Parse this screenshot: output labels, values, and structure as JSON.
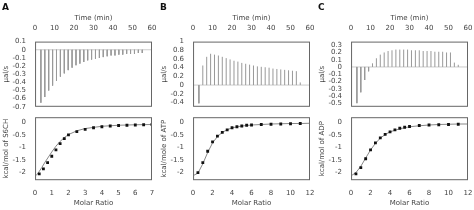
{
  "chart_data": [
    {
      "type": "spike",
      "title": "A",
      "xlabel": "Time (min)",
      "ylabel": "μal/s",
      "xlim": [
        0,
        60
      ],
      "xticks": [
        0,
        10,
        20,
        30,
        40,
        50,
        60
      ],
      "ylim": [
        -0.7,
        0.1
      ],
      "yticks": [
        0.1,
        0,
        -0.1,
        -0.2,
        -0.3,
        -0.4,
        -0.5,
        -0.6,
        -0.7
      ],
      "x": [
        3,
        5,
        7,
        9,
        11,
        13,
        15,
        17,
        19,
        21,
        23,
        25,
        27,
        29,
        31,
        33,
        35,
        37,
        39,
        41,
        43,
        45,
        47,
        49,
        51,
        53,
        55
      ],
      "values": [
        -0.65,
        -0.58,
        -0.5,
        -0.44,
        -0.38,
        -0.33,
        -0.29,
        -0.25,
        -0.22,
        -0.19,
        -0.17,
        -0.15,
        -0.13,
        -0.12,
        -0.11,
        -0.1,
        -0.09,
        -0.08,
        -0.07,
        -0.07,
        -0.06,
        -0.06,
        -0.05,
        -0.05,
        -0.05,
        -0.04,
        -0.04
      ],
      "baseline": 0,
      "color": "#999999",
      "grid": false
    },
    {
      "type": "scatter",
      "xlabel": "Molar Ratio",
      "ylabel": "kcal/mol of S6CH",
      "xlim": [
        0,
        7
      ],
      "xticks": [
        0,
        1,
        2,
        3,
        4,
        5,
        6,
        7
      ],
      "ylim": [
        -2.3,
        0.2
      ],
      "yticks": [
        0,
        -0.5,
        -1,
        -1.5,
        -2
      ],
      "grid": false,
      "series": [
        {
          "type": "line",
          "color": "#888888",
          "x": [
            0.05,
            0.2,
            0.4,
            0.6,
            0.8,
            1.0,
            1.25,
            1.5,
            1.75,
            2.0,
            2.5,
            3.0,
            4.0,
            5.0,
            6.0,
            7.0
          ],
          "values": [
            -2.12,
            -2.0,
            -1.8,
            -1.58,
            -1.38,
            -1.18,
            -0.95,
            -0.76,
            -0.61,
            -0.49,
            -0.34,
            -0.25,
            -0.16,
            -0.12,
            -0.1,
            -0.09
          ]
        },
        {
          "type": "scatter",
          "color": "#111111",
          "marker": "square",
          "x": [
            0.25,
            0.5,
            0.75,
            1.0,
            1.25,
            1.5,
            1.75,
            2.0,
            2.5,
            3.0,
            3.5,
            4.0,
            4.5,
            5.0,
            5.5,
            6.0,
            6.5,
            7.0
          ],
          "values": [
            -2.05,
            -1.85,
            -1.6,
            -1.35,
            -1.1,
            -0.85,
            -0.65,
            -0.5,
            -0.37,
            -0.28,
            -0.22,
            -0.18,
            -0.15,
            -0.13,
            -0.12,
            -0.11,
            -0.1,
            -0.09
          ]
        }
      ]
    },
    {
      "type": "spike",
      "title": "B",
      "xlabel": "Time (min)",
      "ylabel": "μal/s",
      "xlim": [
        0,
        60
      ],
      "xticks": [
        0,
        10,
        20,
        30,
        40,
        50,
        60
      ],
      "ylim": [
        -0.5,
        1.0
      ],
      "yticks": [
        1,
        0.8,
        0.6,
        0.4,
        0.2,
        0,
        -0.2,
        -0.4
      ],
      "x": [
        3,
        5,
        7,
        9,
        11,
        13,
        15,
        17,
        19,
        21,
        23,
        25,
        27,
        29,
        31,
        33,
        35,
        37,
        39,
        41,
        43,
        45,
        47,
        49,
        51,
        53,
        55
      ],
      "values": [
        -0.42,
        0.45,
        0.65,
        0.72,
        0.7,
        0.68,
        0.65,
        0.62,
        0.59,
        0.56,
        0.54,
        0.51,
        0.49,
        0.47,
        0.45,
        0.43,
        0.42,
        0.41,
        0.4,
        0.38,
        0.37,
        0.36,
        0.35,
        0.34,
        0.33,
        0.32,
        0.06
      ],
      "baseline": 0,
      "color": "#999999",
      "grid": false
    },
    {
      "type": "scatter",
      "xlabel": "Molar Ratio",
      "ylabel": "kcal/mole of ATP",
      "xlim": [
        0,
        12
      ],
      "xticks": [
        0,
        2,
        4,
        6,
        8,
        10,
        12
      ],
      "ylim": [
        -2.3,
        0.2
      ],
      "yticks": [
        0,
        -0.5,
        -1,
        -1.5,
        -2
      ],
      "grid": false,
      "series": [
        {
          "type": "line",
          "color": "#888888",
          "x": [
            0.1,
            0.5,
            1.0,
            1.5,
            2.0,
            2.5,
            3.0,
            3.5,
            4.0,
            5.0,
            6.0,
            7.0,
            8.0,
            9.0,
            10.0,
            11.0,
            12.0
          ],
          "values": [
            -2.1,
            -2.02,
            -1.65,
            -1.2,
            -0.82,
            -0.57,
            -0.4,
            -0.3,
            -0.22,
            -0.15,
            -0.11,
            -0.09,
            -0.07,
            -0.06,
            -0.05,
            -0.05,
            -0.04
          ]
        },
        {
          "type": "scatter",
          "color": "#111111",
          "marker": "square",
          "x": [
            0.5,
            1.0,
            1.5,
            2.0,
            2.5,
            3.0,
            3.5,
            4.0,
            4.5,
            5.0,
            5.5,
            6.0,
            7.0,
            8.0,
            9.0,
            10.0,
            11.0
          ],
          "values": [
            -2.0,
            -1.6,
            -1.15,
            -0.78,
            -0.55,
            -0.4,
            -0.3,
            -0.22,
            -0.18,
            -0.15,
            -0.12,
            -0.11,
            -0.09,
            -0.08,
            -0.07,
            -0.06,
            -0.05
          ]
        }
      ]
    },
    {
      "type": "spike",
      "title": "C",
      "xlabel": "Time (min)",
      "ylabel": "μal/s",
      "xlim": [
        0,
        60
      ],
      "xticks": [
        0,
        10,
        20,
        30,
        40,
        50,
        60
      ],
      "ylim": [
        -0.55,
        0.35
      ],
      "yticks": [
        0.3,
        0.2,
        0.1,
        0,
        -0.1,
        -0.2,
        -0.3,
        -0.4,
        -0.5
      ],
      "x": [
        3,
        5,
        7,
        9,
        11,
        13,
        15,
        17,
        19,
        21,
        23,
        25,
        27,
        29,
        31,
        33,
        35,
        37,
        39,
        41,
        43,
        45,
        47,
        49,
        51,
        53,
        55
      ],
      "values": [
        -0.5,
        -0.35,
        -0.18,
        -0.06,
        0.05,
        0.12,
        0.17,
        0.2,
        0.22,
        0.23,
        0.24,
        0.24,
        0.24,
        0.24,
        0.23,
        0.23,
        0.23,
        0.22,
        0.22,
        0.22,
        0.21,
        0.21,
        0.21,
        0.2,
        0.2,
        0.06,
        0.03
      ],
      "baseline": 0,
      "color": "#999999",
      "grid": false
    },
    {
      "type": "scatter",
      "xlabel": "Molar Ratio",
      "ylabel": "kcal/mol of ADP",
      "xlim": [
        0,
        12
      ],
      "xticks": [
        0,
        2,
        4,
        6,
        8,
        10,
        12
      ],
      "ylim": [
        -2.3,
        0.2
      ],
      "yticks": [
        0,
        -0.5,
        -1,
        -1.5,
        -2
      ],
      "grid": false,
      "series": [
        {
          "type": "line",
          "color": "#888888",
          "x": [
            0.1,
            0.5,
            1.0,
            1.5,
            2.0,
            2.5,
            3.0,
            3.5,
            4.0,
            5.0,
            6.0,
            7.0,
            8.0,
            9.0,
            10.0,
            11.0,
            12.0
          ],
          "values": [
            -2.1,
            -2.0,
            -1.75,
            -1.42,
            -1.1,
            -0.84,
            -0.63,
            -0.49,
            -0.38,
            -0.26,
            -0.18,
            -0.14,
            -0.11,
            -0.09,
            -0.08,
            -0.07,
            -0.07
          ]
        },
        {
          "type": "scatter",
          "color": "#111111",
          "marker": "square",
          "x": [
            0.5,
            1.0,
            1.5,
            2.0,
            2.5,
            3.0,
            3.5,
            4.0,
            4.5,
            5.0,
            5.5,
            6.0,
            7.0,
            8.0,
            9.0,
            10.0,
            11.0
          ],
          "values": [
            -2.05,
            -1.8,
            -1.45,
            -1.1,
            -0.82,
            -0.62,
            -0.48,
            -0.38,
            -0.3,
            -0.24,
            -0.2,
            -0.17,
            -0.13,
            -0.11,
            -0.1,
            -0.09,
            -0.08
          ]
        }
      ]
    }
  ]
}
